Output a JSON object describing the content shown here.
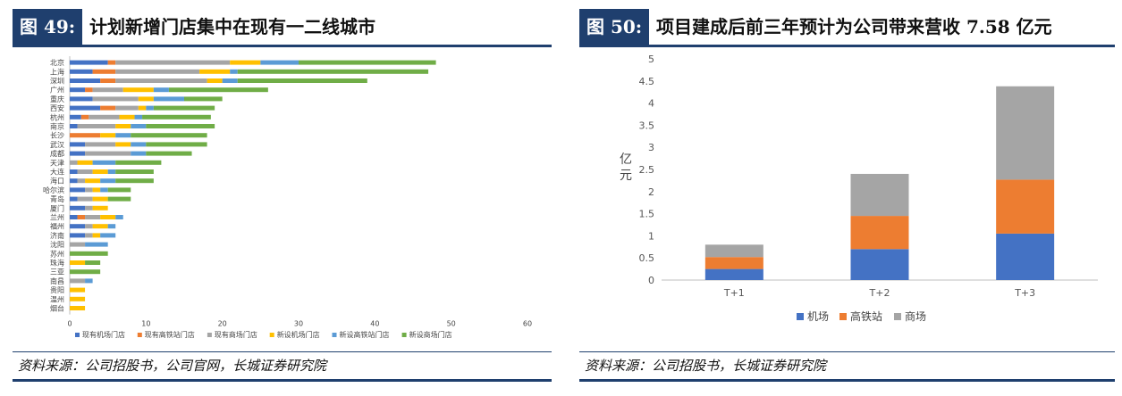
{
  "left_panel": {
    "figure_label": "图 49:",
    "title": "计划新增门店集中在现有一二线城市",
    "source": "资料来源：公司招股书，公司官网，长城证券研究院"
  },
  "right_panel": {
    "figure_label": "图 50:",
    "title": "项目建成后前三年预计为公司带来营收 7.58 亿元",
    "source": "资料来源：公司招股书，长城证券研究院"
  },
  "chart_data": [
    {
      "type": "bar",
      "orientation": "horizontal",
      "stacked": true,
      "categories": [
        "北京",
        "上海",
        "深圳",
        "广州",
        "重庆",
        "西安",
        "杭州",
        "南京",
        "长沙",
        "武汉",
        "成都",
        "天津",
        "大连",
        "海口",
        "哈尔滨",
        "青岛",
        "厦门",
        "兰州",
        "福州",
        "济南",
        "沈阳",
        "苏州",
        "珠海",
        "三亚",
        "南昌",
        "贵阳",
        "温州",
        "烟台"
      ],
      "series": [
        {
          "name": "现有机场门店",
          "color": "#4472c4",
          "values": [
            5,
            3,
            4,
            2,
            3,
            4,
            1.5,
            1,
            0,
            2,
            2,
            0,
            1,
            1,
            2,
            1,
            2,
            1,
            2,
            2,
            0,
            0,
            0,
            0,
            0,
            0,
            0,
            0
          ]
        },
        {
          "name": "现有高铁站门店",
          "color": "#ed7d31",
          "values": [
            1,
            3,
            2,
            1,
            0,
            2,
            1,
            0,
            4,
            0,
            0,
            0,
            0,
            0,
            0,
            0,
            0,
            1,
            0,
            0,
            0,
            0,
            0,
            0,
            0,
            0,
            0,
            0
          ]
        },
        {
          "name": "现有商场门店",
          "color": "#a5a5a5",
          "values": [
            15,
            11,
            12,
            4,
            6,
            3,
            4,
            5,
            0,
            4,
            6,
            1,
            2,
            1,
            1,
            2,
            1,
            2,
            1,
            1,
            2,
            0,
            0,
            0,
            2,
            0,
            0,
            0
          ]
        },
        {
          "name": "新设机场门店",
          "color": "#ffc000",
          "values": [
            4,
            4,
            2,
            4,
            2,
            1,
            2,
            2,
            2,
            2,
            0,
            2,
            2,
            2,
            1,
            2,
            2,
            2,
            2,
            1,
            0,
            0,
            2,
            0,
            0,
            2,
            2,
            2
          ]
        },
        {
          "name": "新设高铁站门店",
          "color": "#5b9bd5",
          "values": [
            5,
            1,
            2,
            2,
            4,
            1,
            1,
            2,
            2,
            2,
            2,
            3,
            1,
            2,
            1,
            0,
            0,
            1,
            1,
            2,
            3,
            0,
            0,
            0,
            1,
            0,
            0,
            0
          ]
        },
        {
          "name": "新设商场门店",
          "color": "#70ad47",
          "values": [
            18,
            25,
            17,
            13,
            5,
            8,
            9,
            9,
            10,
            8,
            6,
            6,
            5,
            5,
            3,
            3,
            0,
            0,
            0,
            0,
            0,
            5,
            2,
            4,
            0,
            0,
            0,
            0
          ]
        }
      ],
      "xlim": [
        0,
        60
      ],
      "xticks": [
        "0",
        "10",
        "20",
        "30",
        "40",
        "50",
        "60"
      ],
      "legend_position": "bottom",
      "grid": false
    },
    {
      "type": "bar",
      "orientation": "vertical",
      "stacked": true,
      "categories": [
        "T+1",
        "T+2",
        "T+3"
      ],
      "series": [
        {
          "name": "机场",
          "color": "#4472c4",
          "values": [
            0.25,
            0.7,
            1.05
          ]
        },
        {
          "name": "高铁站",
          "color": "#ed7d31",
          "values": [
            0.27,
            0.75,
            1.22
          ]
        },
        {
          "name": "商场",
          "color": "#a5a5a5",
          "values": [
            0.28,
            0.95,
            2.11
          ]
        }
      ],
      "ylabel": "亿元",
      "ylim": [
        0,
        5
      ],
      "yticks": [
        "0",
        "0.5",
        "1",
        "1.5",
        "2",
        "2.5",
        "3",
        "3.5",
        "4",
        "4.5",
        "5"
      ],
      "legend_position": "bottom",
      "grid": false
    }
  ]
}
